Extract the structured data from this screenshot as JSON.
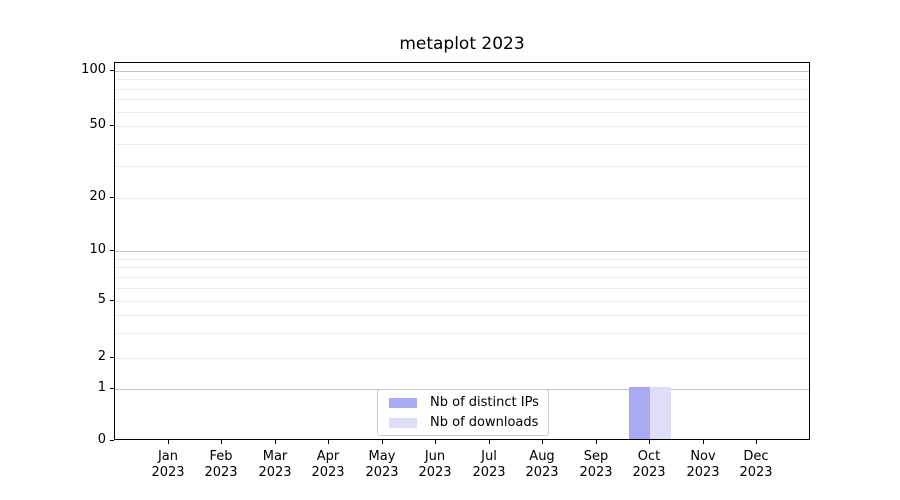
{
  "chart": {
    "title": "metaplot 2023",
    "chart_data": {
      "type": "bar",
      "categories": [
        "Jan",
        "Feb",
        "Mar",
        "Apr",
        "May",
        "Jun",
        "Jul",
        "Aug",
        "Sep",
        "Oct",
        "Nov",
        "Dec"
      ],
      "category_year": "2023",
      "series": [
        {
          "name": "Nb of distinct IPs",
          "color": "#a9a9f4",
          "values": [
            0,
            0,
            0,
            0,
            0,
            0,
            0,
            0,
            0,
            1,
            0,
            0
          ]
        },
        {
          "name": "Nb of downloads",
          "color": "#dedef8",
          "values": [
            0,
            0,
            0,
            0,
            0,
            0,
            0,
            0,
            0,
            1,
            0,
            0
          ]
        }
      ],
      "title": "metaplot 2023",
      "xlabel": "",
      "ylabel": "",
      "y_axis": {
        "scale": "log(1+y)",
        "ticks": [
          0,
          1,
          2,
          5,
          10,
          20,
          50,
          100
        ],
        "tick_labels": [
          "0",
          "1",
          "2",
          "5",
          "10",
          "20",
          "50",
          "100"
        ],
        "minor_ticks": [
          3,
          4,
          6,
          7,
          8,
          9,
          30,
          40,
          60,
          70,
          80,
          90
        ],
        "ylim": [
          0,
          110
        ],
        "grid": "on"
      },
      "legend_position": "lower center"
    },
    "colors": {
      "grid_major": "#c5c5c5",
      "grid_minor": "#ececec",
      "spine": "#000000",
      "legend_border": "#cccccc"
    }
  }
}
